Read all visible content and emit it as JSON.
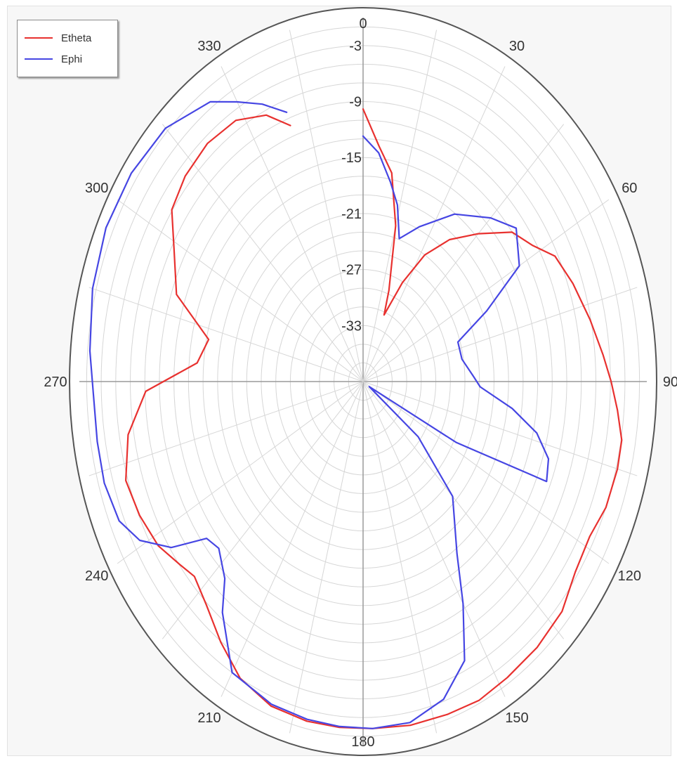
{
  "chart_data": {
    "type": "polar-line",
    "radial_axis": {
      "min": -39,
      "max": 0,
      "ring_step": 2,
      "tick_labels": [
        "0",
        "-3",
        "-9",
        "-15",
        "-21",
        "-27",
        "-33"
      ],
      "tick_values": [
        0,
        -3,
        -9,
        -15,
        -21,
        -27,
        -33
      ]
    },
    "angular_axis": {
      "direction": "clockwise",
      "zero_at": "top",
      "spoke_step_deg": 15,
      "labels": [
        "0",
        "30",
        "60",
        "90",
        "120",
        "150",
        "180",
        "210",
        "240",
        "270",
        "300",
        "330"
      ],
      "label_values": [
        0,
        30,
        60,
        90,
        120,
        150,
        180,
        210,
        240,
        270,
        300,
        330
      ]
    },
    "grid": true,
    "legend": {
      "position": "top-left"
    },
    "series": [
      {
        "name": "Etheta",
        "color": "#e8312f",
        "points": [
          [
            0,
            -9.8
          ],
          [
            5,
            -13.7
          ],
          [
            10,
            -16.3
          ],
          [
            15,
            -21.7
          ],
          [
            20,
            -28.6
          ],
          [
            22,
            -31.3
          ],
          [
            27,
            -27.1
          ],
          [
            32,
            -23.0
          ],
          [
            38,
            -19.7
          ],
          [
            45,
            -16.6
          ],
          [
            52,
            -13.0
          ],
          [
            58,
            -11.5
          ],
          [
            63,
            -9.4
          ],
          [
            70,
            -8.3
          ],
          [
            78,
            -7.1
          ],
          [
            85,
            -5.9
          ],
          [
            90,
            -4.9
          ],
          [
            95,
            -3.9
          ],
          [
            100,
            -2.9
          ],
          [
            105,
            -2.8
          ],
          [
            112,
            -3.0
          ],
          [
            118,
            -3.7
          ],
          [
            125,
            -3.4
          ],
          [
            132,
            -2.2
          ],
          [
            140,
            -1.8
          ],
          [
            148,
            -1.6
          ],
          [
            155,
            -1.3
          ],
          [
            162,
            -1.5
          ],
          [
            170,
            -1.6
          ],
          [
            178,
            -1.8
          ],
          [
            185,
            -1.8
          ],
          [
            192,
            -1.8
          ],
          [
            200,
            -2.0
          ],
          [
            208,
            -3.0
          ],
          [
            215,
            -4.9
          ],
          [
            222,
            -6.8
          ],
          [
            228,
            -7.8
          ],
          [
            232,
            -7.1
          ],
          [
            238,
            -5.8
          ],
          [
            245,
            -5.1
          ],
          [
            252,
            -4.7
          ],
          [
            260,
            -6.2
          ],
          [
            268,
            -9.1
          ],
          [
            275,
            -16.1
          ],
          [
            282,
            -17.3
          ],
          [
            290,
            -11.7
          ],
          [
            298,
            -9.6
          ],
          [
            305,
            -6.9
          ],
          [
            312,
            -6.1
          ],
          [
            320,
            -5.7
          ],
          [
            328,
            -6.0
          ],
          [
            335,
            -7.5
          ],
          [
            340,
            -9.8
          ]
        ]
      },
      {
        "name": "Ephi",
        "color": "#4646e3",
        "points": [
          [
            0,
            -12.7
          ],
          [
            5,
            -14.4
          ],
          [
            10,
            -17.3
          ],
          [
            14,
            -19.5
          ],
          [
            18,
            -22.9
          ],
          [
            25,
            -20.7
          ],
          [
            35,
            -17.1
          ],
          [
            45,
            -14.2
          ],
          [
            52,
            -12.3
          ],
          [
            60,
            -14.2
          ],
          [
            66,
            -20.4
          ],
          [
            72,
            -25.3
          ],
          [
            80,
            -25.2
          ],
          [
            88,
            -23.8
          ],
          [
            92,
            -22.9
          ],
          [
            98,
            -18.3
          ],
          [
            103,
            -14.5
          ],
          [
            108,
            -12.2
          ],
          [
            113,
            -11.6
          ],
          [
            117,
            -24.6
          ],
          [
            123,
            -38.0
          ],
          [
            128,
            -29.4
          ],
          [
            135,
            -21.6
          ],
          [
            145,
            -16.5
          ],
          [
            150,
            -11.5
          ],
          [
            155,
            -6.0
          ],
          [
            162,
            -3.2
          ],
          [
            170,
            -1.9
          ],
          [
            178,
            -1.8
          ],
          [
            185,
            -1.9
          ],
          [
            192,
            -2.0
          ],
          [
            200,
            -2.2
          ],
          [
            210,
            -3.0
          ],
          [
            218,
            -7.6
          ],
          [
            222,
            -10.6
          ],
          [
            228,
            -12.3
          ],
          [
            232,
            -11.7
          ],
          [
            236,
            -7.2
          ],
          [
            241,
            -3.9
          ],
          [
            246,
            -2.3
          ],
          [
            253,
            -1.8
          ],
          [
            260,
            -1.9
          ],
          [
            268,
            -1.9
          ],
          [
            275,
            -1.3
          ],
          [
            285,
            -0.5
          ],
          [
            295,
            0.0
          ],
          [
            305,
            -0.1
          ],
          [
            315,
            -0.6
          ],
          [
            325,
            -2.4
          ],
          [
            330,
            -4.4
          ],
          [
            335,
            -6.2
          ],
          [
            340,
            -8.3
          ]
        ]
      }
    ]
  }
}
